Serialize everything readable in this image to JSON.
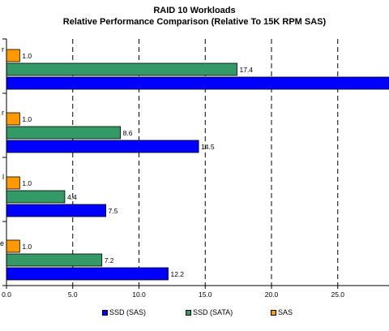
{
  "chart_data": {
    "type": "bar",
    "orientation": "horizontal",
    "title": "RAID 10 Workloads",
    "subtitle": "Relative Performance Comparison (Relative To 15K RPM SAS)",
    "categories": [
      "r",
      "r",
      "l",
      "e"
    ],
    "series": [
      {
        "name": "SAS",
        "color": "#ff9900",
        "values": [
          1.0,
          1.0,
          1.0,
          1.0
        ]
      },
      {
        "name": "SSD (SATA)",
        "color": "#339966",
        "values": [
          17.4,
          8.6,
          4.4,
          7.2
        ]
      },
      {
        "name": "SSD (SAS)",
        "color": "#0000ff",
        "values": [
          29.0,
          14.5,
          7.5,
          12.2
        ]
      }
    ],
    "data_labels": [
      [
        "1.0",
        "17.4",
        ""
      ],
      [
        "1.0",
        "8.6",
        "14.5"
      ],
      [
        "1.0",
        "4.4",
        "7.5"
      ],
      [
        "1.0",
        "7.2",
        "12.2"
      ]
    ],
    "xticks": [
      "0.0",
      "5.0",
      "10.0",
      "15.0",
      "20.0",
      "25.0"
    ],
    "xlim": [
      0,
      29
    ],
    "grid": "vertical dashed",
    "legend": {
      "position": "bottom",
      "order": [
        "SSD (SAS)",
        "SSD (SATA)",
        "SAS"
      ]
    }
  }
}
